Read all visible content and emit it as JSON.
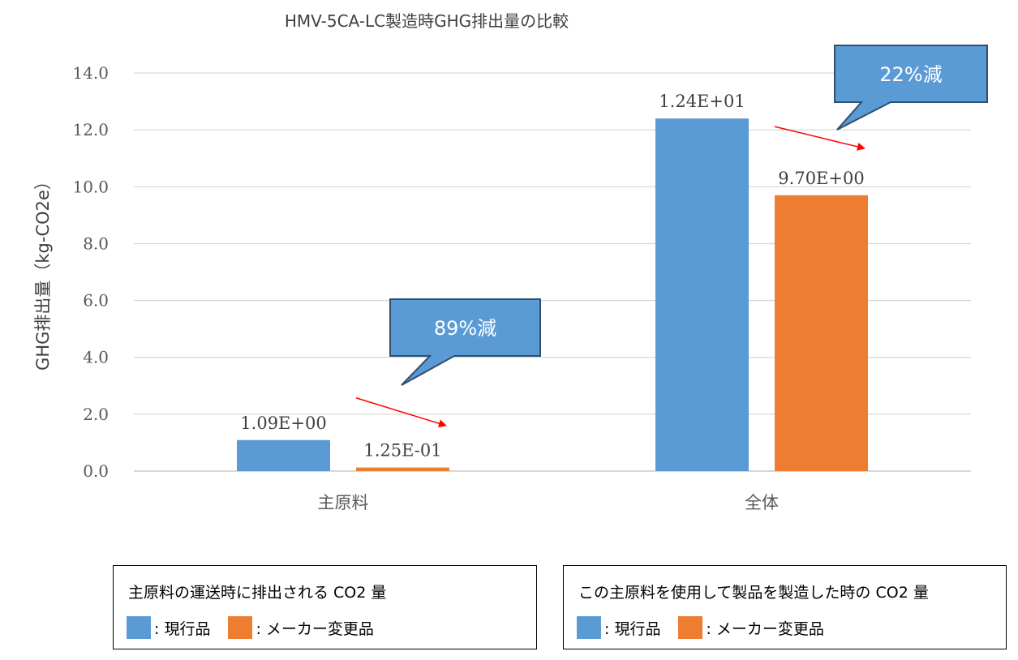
{
  "chart_data": {
    "type": "bar",
    "title": "HMV-5CA-LC製造時GHG排出量の比較",
    "ylabel": "GHG排出量（kg-CO2e）",
    "xlabel": "",
    "ylim": [
      0,
      14
    ],
    "yticks": [
      "0.0",
      "2.0",
      "4.0",
      "6.0",
      "8.0",
      "10.0",
      "12.0",
      "14.0"
    ],
    "ytick_values": [
      0,
      2,
      4,
      6,
      8,
      10,
      12,
      14
    ],
    "grid": true,
    "categories": [
      "主原料",
      "全体"
    ],
    "series": [
      {
        "values": [
          1.09,
          12.4
        ],
        "labels": [
          "1.09E+00",
          "1.24E+01"
        ],
        "color": "#5B9BD5"
      },
      {
        "values": [
          0.125,
          9.7
        ],
        "labels": [
          "1.25E-01",
          "9.70E+00"
        ],
        "color": "#ED7D31"
      }
    ],
    "annotations": [
      {
        "text": "89%減",
        "category": "主原料"
      },
      {
        "text": "22%減",
        "category": "全体"
      }
    ],
    "arrow_color": "#FF0000",
    "callout_color": "#5B9BD5"
  },
  "legends": [
    {
      "title": "主原料の運送時に排出される CO2 量",
      "items": [
        ": 現行品",
        ": メーカー変更品"
      ]
    },
    {
      "title": "この主原料を使用して製品を製造した時の CO2 量",
      "items": [
        ": 現行品",
        ": メーカー変更品"
      ]
    }
  ]
}
